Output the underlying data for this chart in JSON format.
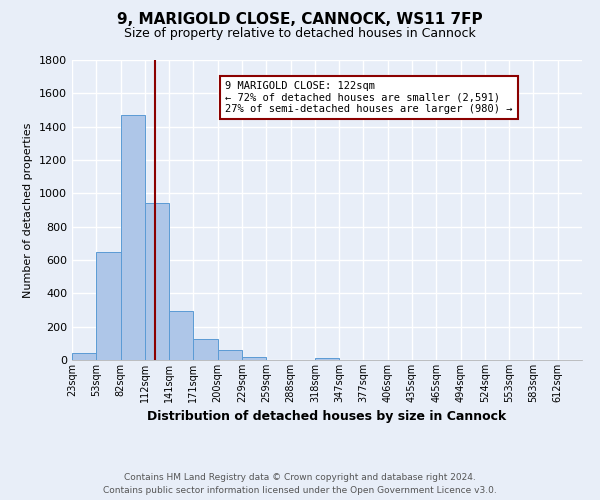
{
  "title": "9, MARIGOLD CLOSE, CANNOCK, WS11 7FP",
  "subtitle": "Size of property relative to detached houses in Cannock",
  "xlabel": "Distribution of detached houses by size in Cannock",
  "ylabel": "Number of detached properties",
  "bin_labels": [
    "23sqm",
    "53sqm",
    "82sqm",
    "112sqm",
    "141sqm",
    "171sqm",
    "200sqm",
    "229sqm",
    "259sqm",
    "288sqm",
    "318sqm",
    "347sqm",
    "377sqm",
    "406sqm",
    "435sqm",
    "465sqm",
    "494sqm",
    "524sqm",
    "553sqm",
    "583sqm",
    "612sqm"
  ],
  "bar_heights": [
    40,
    650,
    1470,
    940,
    295,
    125,
    62,
    20,
    0,
    0,
    15,
    0,
    0,
    0,
    0,
    0,
    0,
    0,
    0,
    0,
    0
  ],
  "bar_color": "#aec6e8",
  "bar_edgecolor": "#5b9bd5",
  "vline_x_bin": 3,
  "vline_color": "#8b0000",
  "annotation_line1": "9 MARIGOLD CLOSE: 122sqm",
  "annotation_line2": "← 72% of detached houses are smaller (2,591)",
  "annotation_line3": "27% of semi-detached houses are larger (980) →",
  "annotation_box_edgecolor": "#8b0000",
  "annotation_box_facecolor": "#ffffff",
  "ylim": [
    0,
    1800
  ],
  "yticks": [
    0,
    200,
    400,
    600,
    800,
    1000,
    1200,
    1400,
    1600,
    1800
  ],
  "footer_line1": "Contains HM Land Registry data © Crown copyright and database right 2024.",
  "footer_line2": "Contains public sector information licensed under the Open Government Licence v3.0.",
  "bg_color": "#e8eef8",
  "grid_color": "#ffffff",
  "n_bins": 21,
  "bin_width": 1
}
